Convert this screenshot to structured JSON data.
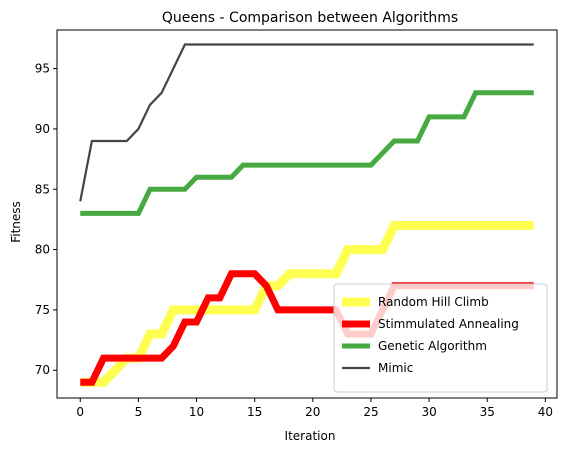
{
  "chart_data": {
    "type": "line",
    "title": "Queens - Comparison between Algorithms",
    "xlabel": "Iteration",
    "ylabel": "Fitness",
    "xlim": [
      -2,
      41
    ],
    "ylim": [
      67.7,
      98.2
    ],
    "xticks": [
      0,
      5,
      10,
      15,
      20,
      25,
      30,
      35,
      40
    ],
    "yticks": [
      70,
      75,
      80,
      85,
      90,
      95
    ],
    "grid": false,
    "legend_position": "lower-right",
    "x": [
      0,
      1,
      2,
      3,
      4,
      5,
      6,
      7,
      8,
      9,
      10,
      11,
      12,
      13,
      14,
      15,
      16,
      17,
      18,
      19,
      20,
      21,
      22,
      23,
      24,
      25,
      26,
      27,
      28,
      29,
      30,
      31,
      32,
      33,
      34,
      35,
      36,
      37,
      38,
      39
    ],
    "series": [
      {
        "name": "Random Hill Climb",
        "color": "#ffff33",
        "opacity": 0.85,
        "line_width": 9,
        "values": [
          69,
          69,
          69,
          70,
          71,
          71,
          73,
          73,
          75,
          75,
          75,
          75,
          75,
          75,
          75,
          75,
          77,
          77,
          78,
          78,
          78,
          78,
          78,
          80,
          80,
          80,
          80,
          82,
          82,
          82,
          82,
          82,
          82,
          82,
          82,
          82,
          82,
          82,
          82,
          82
        ]
      },
      {
        "name": "Stimmulated Annealing",
        "color": "#ff0000",
        "opacity": 1,
        "line_width": 7,
        "values": [
          69,
          69,
          71,
          71,
          71,
          71,
          71,
          71,
          72,
          74,
          74,
          76,
          76,
          78,
          78,
          78,
          77,
          75,
          75,
          75,
          75,
          75,
          75,
          73,
          73,
          73,
          75,
          77,
          77,
          77,
          77,
          77,
          77,
          77,
          77,
          77,
          77,
          77,
          77,
          77
        ]
      },
      {
        "name": "Genetic Algorithm",
        "color": "#33a02c",
        "opacity": 0.9,
        "line_width": 5,
        "values": [
          83,
          83,
          83,
          83,
          83,
          83,
          85,
          85,
          85,
          85,
          86,
          86,
          86,
          86,
          87,
          87,
          87,
          87,
          87,
          87,
          87,
          87,
          87,
          87,
          87,
          87,
          88,
          89,
          89,
          89,
          91,
          91,
          91,
          91,
          93,
          93,
          93,
          93,
          93,
          93
        ]
      },
      {
        "name": "Mimic",
        "color": "#444444",
        "opacity": 1,
        "line_width": 2.2,
        "values": [
          84,
          89,
          89,
          89,
          89,
          90,
          92,
          93,
          95,
          97,
          97,
          97,
          97,
          97,
          97,
          97,
          97,
          97,
          97,
          97,
          97,
          97,
          97,
          97,
          97,
          97,
          97,
          97,
          97,
          97,
          97,
          97,
          97,
          97,
          97,
          97,
          97,
          97,
          97,
          97
        ]
      }
    ]
  }
}
